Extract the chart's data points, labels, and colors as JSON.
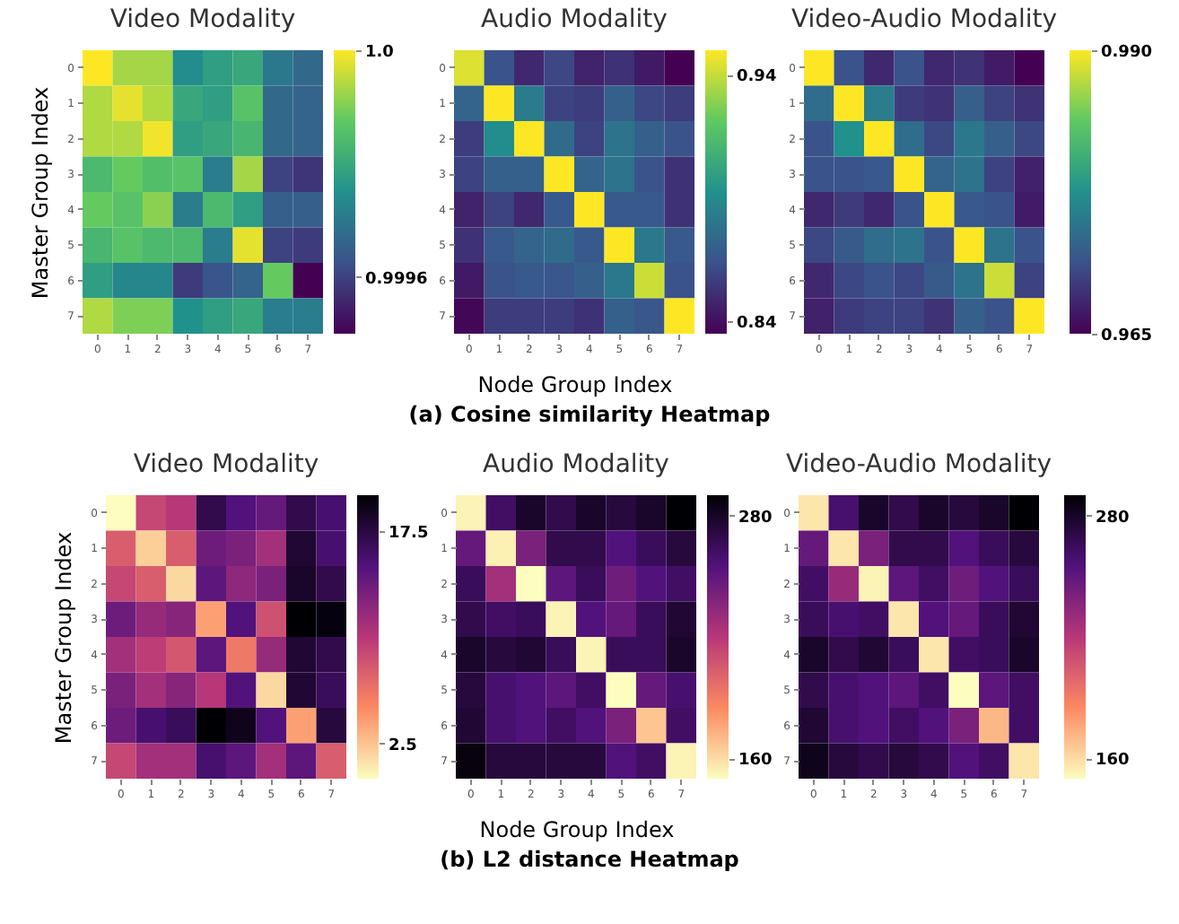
{
  "chart_data": [
    {
      "type": "heatmap",
      "title": "Video Modality",
      "ylabel": "Master Group Index",
      "categories": [
        "0",
        "1",
        "2",
        "3",
        "4",
        "5",
        "6",
        "7"
      ],
      "y_categories": [
        "0",
        "1",
        "2",
        "3",
        "4",
        "5",
        "6",
        "7"
      ],
      "colors": [
        "#440154",
        "#3b528b",
        "#21918c",
        "#5ec962",
        "#fde725"
      ],
      "clim": [
        0.9995,
        1.0
      ],
      "cticks": [
        {
          "value": 1.0,
          "label": "1.0"
        },
        0.9996
      ],
      "cells": [
        [
          1.0,
          0.99993,
          0.99993,
          0.99974,
          0.99978,
          0.9998,
          0.9997,
          0.99967
        ],
        [
          0.99994,
          0.99998,
          0.99994,
          0.9998,
          0.99978,
          0.99986,
          0.99967,
          0.99966
        ],
        [
          0.99994,
          0.99994,
          0.99999,
          0.99978,
          0.9998,
          0.99983,
          0.99967,
          0.99966
        ],
        [
          0.99984,
          0.99988,
          0.99985,
          0.99986,
          0.99971,
          0.99993,
          0.9996,
          0.99958
        ],
        [
          0.99988,
          0.99986,
          0.99991,
          0.99971,
          0.99984,
          0.99978,
          0.99965,
          0.99965
        ],
        [
          0.99983,
          0.99986,
          0.99984,
          0.99984,
          0.99971,
          0.99998,
          0.9996,
          0.99959
        ],
        [
          0.99978,
          0.99973,
          0.99973,
          0.99959,
          0.99963,
          0.99966,
          0.99988,
          0.9995
        ],
        [
          0.99994,
          0.9999,
          0.9999,
          0.99975,
          0.99978,
          0.9998,
          0.99971,
          0.99971
        ]
      ]
    },
    {
      "type": "heatmap",
      "title": "Audio Modality",
      "xlabel": "Node Group Index",
      "annotations": [
        "(a) Cosine similarity Heatmap"
      ],
      "categories": [
        "0",
        "1",
        "2",
        "3",
        "4",
        "5",
        "6",
        "7"
      ],
      "y_categories": [
        "0",
        "1",
        "2",
        "3",
        "4",
        "5",
        "6",
        "7"
      ],
      "colors": [
        "#440154",
        "#3b528b",
        "#21918c",
        "#5ec962",
        "#fde725"
      ],
      "clim": [
        0.835,
        0.95
      ],
      "cticks": [
        0.94,
        0.84
      ],
      "cells": [
        [
          0.944,
          0.864,
          0.849,
          0.86,
          0.847,
          0.852,
          0.844,
          0.835
        ],
        [
          0.872,
          0.95,
          0.883,
          0.858,
          0.856,
          0.87,
          0.86,
          0.856
        ],
        [
          0.856,
          0.89,
          0.95,
          0.875,
          0.858,
          0.879,
          0.87,
          0.864
        ],
        [
          0.858,
          0.87,
          0.87,
          0.95,
          0.872,
          0.879,
          0.864,
          0.852
        ],
        [
          0.847,
          0.858,
          0.849,
          0.867,
          0.95,
          0.867,
          0.867,
          0.852
        ],
        [
          0.852,
          0.867,
          0.872,
          0.875,
          0.867,
          0.95,
          0.881,
          0.867
        ],
        [
          0.844,
          0.864,
          0.867,
          0.866,
          0.87,
          0.881,
          0.941,
          0.864
        ],
        [
          0.837,
          0.856,
          0.856,
          0.856,
          0.852,
          0.87,
          0.866,
          0.95
        ]
      ]
    },
    {
      "type": "heatmap",
      "title": "Video-Audio Modality",
      "categories": [
        "0",
        "1",
        "2",
        "3",
        "4",
        "5",
        "6",
        "7"
      ],
      "y_categories": [
        "0",
        "1",
        "2",
        "3",
        "4",
        "5",
        "6",
        "7"
      ],
      "colors": [
        "#440154",
        "#3b528b",
        "#21918c",
        "#5ec962",
        "#fde725"
      ],
      "clim": [
        0.965,
        0.99
      ],
      "cticks": [
        {
          "value": 0.99,
          "label": "0.990"
        },
        0.965
      ],
      "cells": [
        [
          0.99,
          0.9713,
          0.968,
          0.9713,
          0.968,
          0.9688,
          0.967,
          0.965
        ],
        [
          0.9738,
          0.99,
          0.9755,
          0.9695,
          0.9688,
          0.9725,
          0.97,
          0.9688
        ],
        [
          0.9713,
          0.9775,
          0.99,
          0.9738,
          0.9705,
          0.975,
          0.9725,
          0.9705
        ],
        [
          0.9713,
          0.9713,
          0.9718,
          0.99,
          0.973,
          0.9745,
          0.97,
          0.9675
        ],
        [
          0.968,
          0.9695,
          0.968,
          0.9713,
          0.99,
          0.9718,
          0.9713,
          0.967
        ],
        [
          0.9705,
          0.972,
          0.9738,
          0.9745,
          0.9713,
          0.99,
          0.9745,
          0.9713
        ],
        [
          0.968,
          0.9705,
          0.9713,
          0.9705,
          0.972,
          0.9745,
          0.988,
          0.97
        ],
        [
          0.9675,
          0.9695,
          0.97,
          0.97,
          0.9688,
          0.9725,
          0.9713,
          0.99
        ]
      ]
    },
    {
      "type": "heatmap",
      "title": "Video Modality",
      "ylabel": "Master Group Index",
      "categories": [
        "0",
        "1",
        "2",
        "3",
        "4",
        "5",
        "6",
        "7"
      ],
      "y_categories": [
        "0",
        "1",
        "2",
        "3",
        "4",
        "5",
        "6",
        "7"
      ],
      "colors": [
        "#fcfdbf",
        "#fc8961",
        "#b73779",
        "#51127c",
        "#000004"
      ],
      "clim": [
        0,
        20
      ],
      "cticks": [
        17.5,
        2.5
      ],
      "cells": [
        [
          0,
          9,
          10,
          17,
          15,
          14,
          17,
          15.6
        ],
        [
          7.6,
          2,
          7.6,
          13.6,
          13,
          11,
          18,
          15.6
        ],
        [
          9,
          7.6,
          1.6,
          14.4,
          12,
          13,
          18.4,
          17
        ],
        [
          13.6,
          11.6,
          12.4,
          4,
          15,
          8.4,
          20,
          19.6
        ],
        [
          11,
          9.6,
          8,
          14.4,
          6,
          11.6,
          18,
          17
        ],
        [
          13,
          11,
          12.4,
          10,
          15,
          1.6,
          18,
          16.4
        ],
        [
          13.6,
          15.6,
          16.4,
          20,
          19,
          15,
          4,
          17.6
        ],
        [
          9,
          11,
          11,
          15.6,
          14.4,
          11,
          14.4,
          7.6
        ]
      ]
    },
    {
      "type": "heatmap",
      "title": "Audio Modality",
      "xlabel": "Node Group Index",
      "annotations": [
        "(b) L2 distance Heatmap"
      ],
      "categories": [
        "0",
        "1",
        "2",
        "3",
        "4",
        "5",
        "6",
        "7"
      ],
      "y_categories": [
        "0",
        "1",
        "2",
        "3",
        "4",
        "5",
        "6",
        "7"
      ],
      "colors": [
        "#fcfdbf",
        "#fc8961",
        "#b73779",
        "#51127c",
        "#000004"
      ],
      "clim": [
        150,
        290
      ],
      "cticks": [
        280,
        160
      ],
      "cells": [
        [
          153,
          262,
          279,
          269,
          279,
          273,
          279,
          290
        ],
        [
          248,
          154,
          241,
          269,
          269,
          255,
          265,
          273
        ],
        [
          265,
          227,
          150,
          251,
          265,
          245,
          255,
          262
        ],
        [
          269,
          262,
          265,
          153,
          255,
          248,
          265,
          276
        ],
        [
          279,
          273,
          276,
          265,
          153,
          265,
          265,
          279
        ],
        [
          273,
          259,
          255,
          251,
          262,
          150,
          248,
          259
        ],
        [
          276,
          259,
          255,
          262,
          255,
          241,
          167,
          262
        ],
        [
          287,
          273,
          273,
          273,
          273,
          255,
          262,
          153
        ]
      ]
    },
    {
      "type": "heatmap",
      "title": "Video-Audio Modality",
      "categories": [
        "0",
        "1",
        "2",
        "3",
        "4",
        "5",
        "6",
        "7"
      ],
      "y_categories": [
        "0",
        "1",
        "2",
        "3",
        "4",
        "5",
        "6",
        "7"
      ],
      "colors": [
        "#fcfdbf",
        "#fc8961",
        "#b73779",
        "#51127c",
        "#000004"
      ],
      "clim": [
        150,
        290
      ],
      "cticks": [
        280,
        160
      ],
      "cells": [
        [
          157,
          259,
          279,
          269,
          279,
          273,
          279,
          290
        ],
        [
          248,
          157,
          241,
          269,
          269,
          255,
          265,
          273
        ],
        [
          262,
          231,
          153,
          251,
          262,
          245,
          255,
          265
        ],
        [
          265,
          259,
          262,
          157,
          255,
          248,
          265,
          276
        ],
        [
          279,
          269,
          276,
          265,
          157,
          262,
          265,
          279
        ],
        [
          269,
          259,
          255,
          251,
          262,
          150,
          251,
          262
        ],
        [
          276,
          259,
          255,
          262,
          255,
          241,
          171,
          262
        ],
        [
          283,
          273,
          269,
          273,
          269,
          255,
          262,
          157
        ]
      ]
    }
  ]
}
